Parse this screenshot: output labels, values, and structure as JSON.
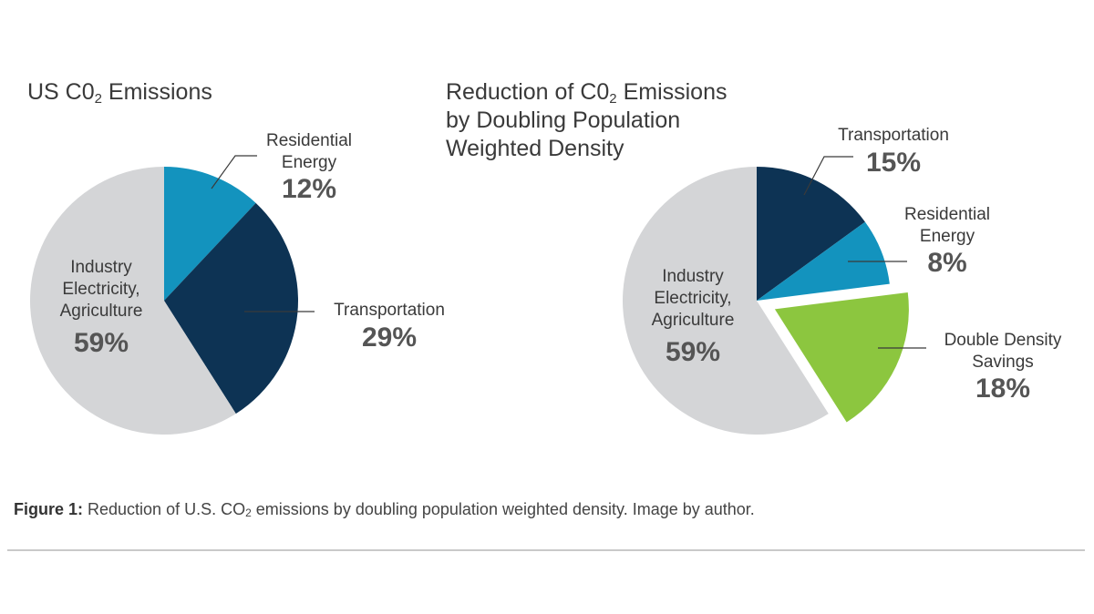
{
  "chart_data": [
    {
      "type": "pie",
      "title": {
        "prefix": "US C0",
        "subscript": "2",
        "suffix": " Emissions"
      },
      "slices": [
        {
          "label": [
            "Residential",
            "Energy"
          ],
          "percent_label": "12%",
          "value": 12,
          "color": "#1393be"
        },
        {
          "label": [
            "Transportation"
          ],
          "percent_label": "29%",
          "value": 29,
          "color": "#0d3354"
        },
        {
          "label": [
            "Industry",
            "Electricity,",
            "Agriculture"
          ],
          "percent_label": "59%",
          "value": 59,
          "color": "#d4d5d7"
        }
      ]
    },
    {
      "type": "pie",
      "title": {
        "lines": [
          "Reduction of C0",
          "by Doubling Population",
          "Weighted Density"
        ],
        "subscript": "2",
        "suffix": " Emissions"
      },
      "slices": [
        {
          "label": [
            "Transportation"
          ],
          "percent_label": "15%",
          "value": 15,
          "color": "#0d3354"
        },
        {
          "label": [
            "Residential",
            "Energy"
          ],
          "percent_label": "8%",
          "value": 8,
          "color": "#1393be"
        },
        {
          "label": [
            "Double Density",
            "Savings"
          ],
          "percent_label": "18%",
          "value": 18,
          "color": "#8cc63f",
          "exploded": true
        },
        {
          "label": [
            "Industry",
            "Electricity,",
            "Agriculture"
          ],
          "percent_label": "59%",
          "value": 59,
          "color": "#d4d5d7"
        }
      ]
    }
  ],
  "caption": {
    "bold": "Figure 1:",
    "text_before_sub": " Reduction of U.S. CO",
    "sub": "2",
    "text_after_sub": " emissions by doubling population weighted density. Image by author."
  },
  "colors": {
    "leader_line": "#3a3a3a",
    "divider": "#c9c9c9"
  }
}
